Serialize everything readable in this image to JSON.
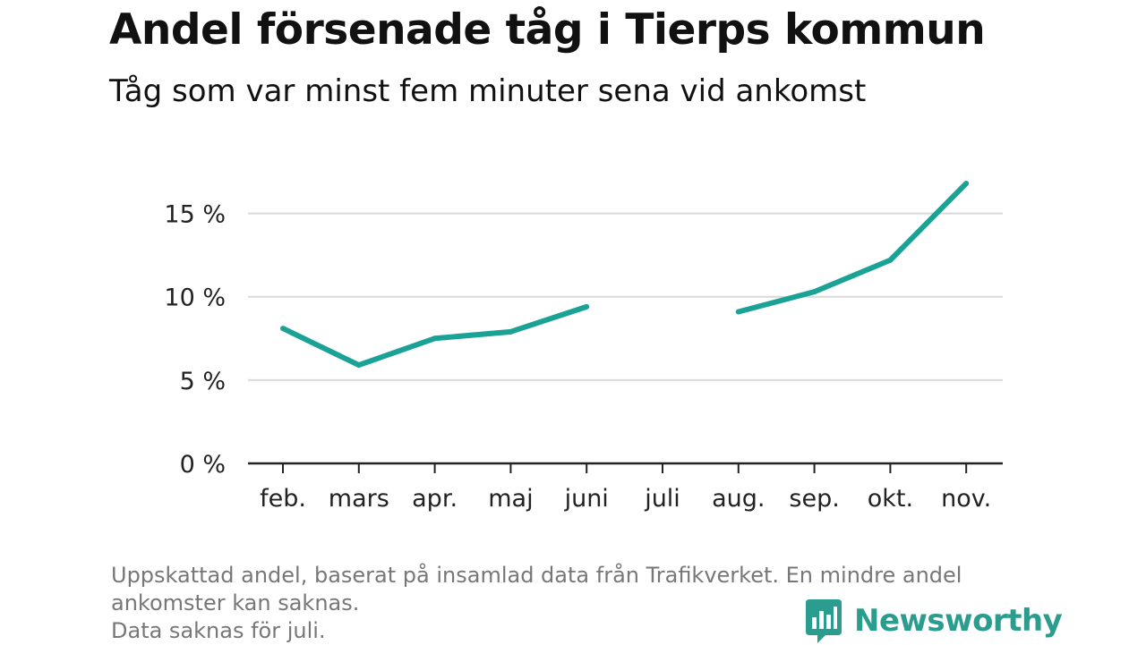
{
  "title": "Andel försenade tåg i Tierps kommun",
  "subtitle": "Tåg som var minst fem minuter sena vid ankomst",
  "footnote": {
    "line1": "Uppskattad andel, baserat på insamlad data från Trafikverket. En mindre andel",
    "line2": "ankomster kan saknas.",
    "line3": "Data saknas för juli."
  },
  "brand": {
    "name": "Newsworthy"
  },
  "colors": {
    "line": "#1ba297",
    "grid": "#d9d9d9",
    "axis": "#222222",
    "brand": "#2a9d8f"
  },
  "chart_data": {
    "type": "line",
    "title": "Andel försenade tåg i Tierps kommun",
    "subtitle": "Tåg som var minst fem minuter sena vid ankomst",
    "xlabel": "",
    "ylabel": "",
    "categories": [
      "feb.",
      "mars",
      "apr.",
      "maj",
      "juni",
      "juli",
      "aug.",
      "sep.",
      "okt.",
      "nov."
    ],
    "series": [
      {
        "values": [
          8.1,
          5.9,
          7.5,
          7.9,
          9.4,
          null,
          9.1,
          10.3,
          12.2,
          16.8
        ]
      }
    ],
    "y_ticks": [
      0,
      5,
      10,
      15
    ],
    "y_tick_labels": [
      "0 %",
      "5 %",
      "10 %",
      "15 %"
    ],
    "ylim": [
      0,
      17.5
    ],
    "grid": true,
    "legend": "none"
  }
}
